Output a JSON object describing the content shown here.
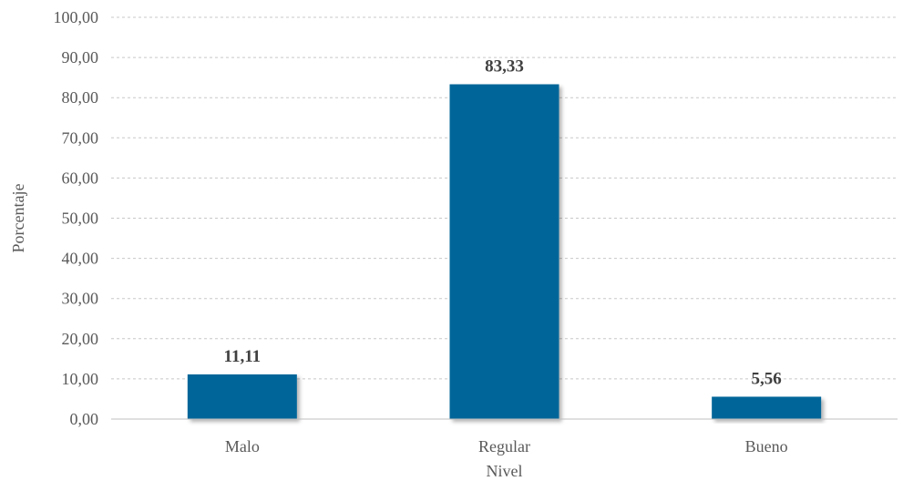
{
  "chart_data": {
    "type": "bar",
    "categories": [
      "Malo",
      "Regular",
      "Bueno"
    ],
    "values": [
      11.11,
      83.33,
      5.56
    ],
    "data_labels": [
      "11,11",
      "83,33",
      "5,56"
    ],
    "xlabel": "Nivel",
    "ylabel": "Porcentaje",
    "ylim": [
      0,
      100
    ],
    "yticks": [
      0,
      10,
      20,
      30,
      40,
      50,
      60,
      70,
      80,
      90,
      100
    ],
    "ytick_labels": [
      "0,00",
      "10,00",
      "20,00",
      "30,00",
      "40,00",
      "50,00",
      "60,00",
      "70,00",
      "80,00",
      "90,00",
      "100,00"
    ],
    "grid": true,
    "legend": "none",
    "bar_color": "#006699"
  }
}
